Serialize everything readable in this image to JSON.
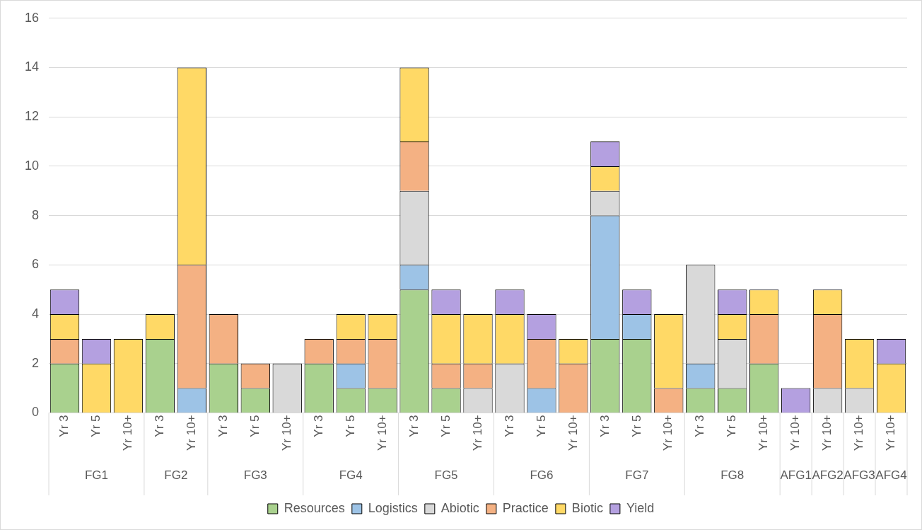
{
  "chart_data": {
    "type": "bar",
    "stacked": true,
    "categories": [
      "Yr 3",
      "Yr 5",
      "Yr 10+",
      "Yr 3",
      "Yr 10+",
      "Yr 3",
      "Yr 5",
      "Yr 10+",
      "Yr 3",
      "Yr 5",
      "Yr 10+",
      "Yr 3",
      "Yr 5",
      "Yr 10+",
      "Yr 3",
      "Yr 5",
      "Yr 10+",
      "Yr 3",
      "Yr 5",
      "Yr 10+",
      "Yr 3",
      "Yr 5",
      "Yr 10+",
      "Yr 10+",
      "Yr 10+",
      "Yr 10+",
      "Yr 10+"
    ],
    "annotations": [
      "FG1",
      "FG2",
      "FG3",
      "FG4",
      "FG5",
      "FG6",
      "FG7",
      "FG8",
      "AFG1",
      "AFG2",
      "AFG3",
      "AFG4"
    ],
    "series": [
      {
        "name": "Resources",
        "color": "#a9d18e",
        "values": [
          2,
          0,
          0,
          3,
          0,
          2,
          1,
          0,
          2,
          1,
          1,
          5,
          1,
          0,
          0,
          0,
          0,
          3,
          3,
          0,
          1,
          1,
          2,
          0,
          0,
          0,
          0
        ]
      },
      {
        "name": "Logistics",
        "color": "#9dc3e6",
        "values": [
          0,
          0,
          0,
          0,
          1,
          0,
          0,
          0,
          0,
          1,
          0,
          1,
          0,
          0,
          0,
          1,
          0,
          5,
          1,
          0,
          1,
          0,
          0,
          0,
          0,
          0,
          0
        ]
      },
      {
        "name": "Abiotic",
        "color": "#d9d9d9",
        "values": [
          0,
          0,
          0,
          0,
          0,
          0,
          0,
          2,
          0,
          0,
          0,
          3,
          0,
          1,
          2,
          0,
          0,
          1,
          0,
          0,
          4,
          2,
          0,
          0,
          1,
          1,
          0
        ]
      },
      {
        "name": "Practice",
        "color": "#f4b183",
        "values": [
          1,
          0,
          0,
          0,
          5,
          2,
          1,
          0,
          1,
          1,
          2,
          2,
          1,
          1,
          0,
          2,
          2,
          0,
          0,
          1,
          0,
          0,
          2,
          0,
          3,
          0,
          0
        ]
      },
      {
        "name": "Biotic",
        "color": "#ffd966",
        "values": [
          1,
          2,
          3,
          1,
          8,
          0,
          0,
          0,
          0,
          1,
          1,
          3,
          2,
          2,
          2,
          0,
          1,
          1,
          0,
          3,
          0,
          1,
          1,
          0,
          1,
          2,
          2
        ]
      },
      {
        "name": "Yield",
        "color": "#b4a0e0",
        "values": [
          1,
          1,
          0,
          0,
          0,
          0,
          0,
          0,
          0,
          0,
          0,
          0,
          1,
          0,
          1,
          1,
          0,
          1,
          1,
          0,
          0,
          1,
          0,
          1,
          0,
          0,
          1
        ]
      }
    ],
    "ylim": [
      0,
      16
    ],
    "yticks": [
      0,
      2,
      4,
      6,
      8,
      10,
      12,
      14,
      16
    ],
    "grid": "y",
    "legend": "bottom"
  }
}
